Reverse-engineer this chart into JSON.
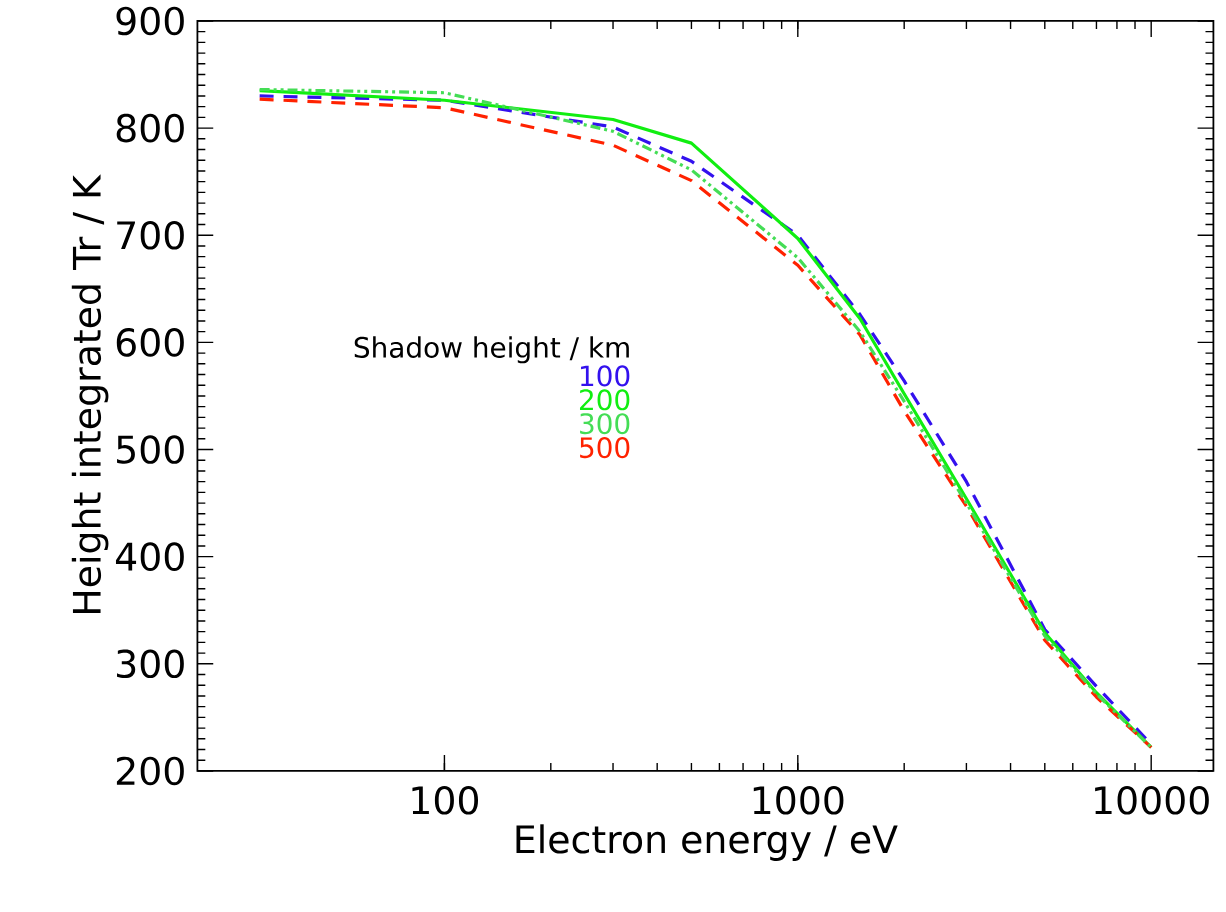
{
  "chart_data": {
    "type": "line",
    "xlabel": "Electron energy / eV",
    "ylabel": "Height integrated Tr / K",
    "legend_title": "Shadow height / km",
    "legend": "left",
    "log": "x",
    "xlim": [
      20,
      15000
    ],
    "xticks": [
      100,
      1000,
      10000
    ],
    "ylim": [
      200,
      900
    ],
    "yticks": [
      200,
      300,
      400,
      500,
      600,
      700,
      800,
      900
    ],
    "x": [
      30,
      100,
      300,
      500,
      1000,
      1500,
      2000,
      3000,
      5000,
      7000,
      10000
    ],
    "series": [
      {
        "name": "100",
        "color": "#3311ee",
        "line_style": "dashed",
        "values": [
          830,
          826,
          801,
          769,
          700,
          626,
          564,
          470,
          332,
          279,
          225
        ]
      },
      {
        "name": "200",
        "color": "#11ee11",
        "line_style": "solid",
        "values": [
          835,
          826,
          808,
          786,
          697,
          622,
          552,
          454,
          329,
          273,
          222
        ]
      },
      {
        "name": "300",
        "color": "#44dd55",
        "line_style": "dashdot",
        "values": [
          836,
          833,
          797,
          761,
          679,
          610,
          545,
          450,
          326,
          272,
          222
        ]
      },
      {
        "name": "500",
        "color": "#ff2200",
        "line_style": "dashed",
        "values": [
          827,
          819,
          784,
          751,
          672,
          607,
          536,
          447,
          322,
          269,
          222
        ]
      }
    ]
  }
}
